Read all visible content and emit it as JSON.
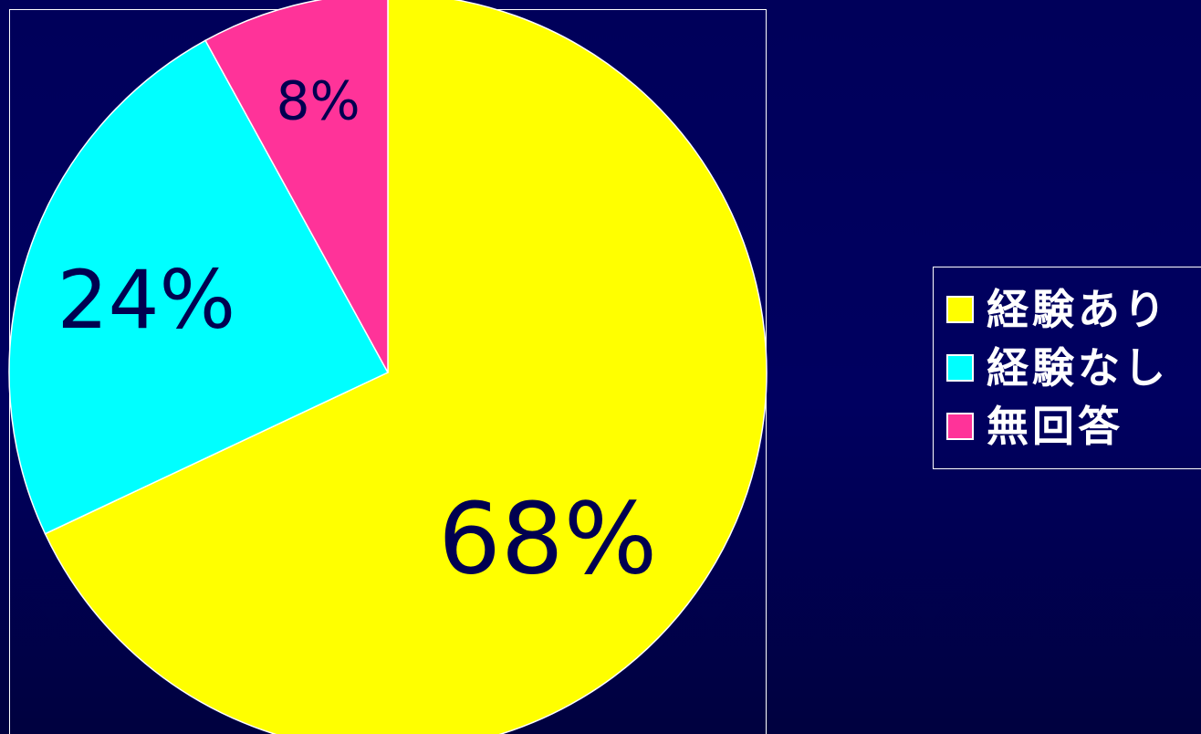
{
  "chart_data": {
    "type": "pie",
    "categories": [
      "経験あり",
      "経験なし",
      "無回答"
    ],
    "values": [
      68,
      24,
      8
    ],
    "data_labels": [
      "68%",
      "24%",
      "8%"
    ],
    "colors": [
      "#ffff00",
      "#00ffff",
      "#ff3399"
    ],
    "start_angle_deg": 0,
    "direction": "clockwise",
    "legend_position": "right",
    "title": "",
    "grid": false
  }
}
